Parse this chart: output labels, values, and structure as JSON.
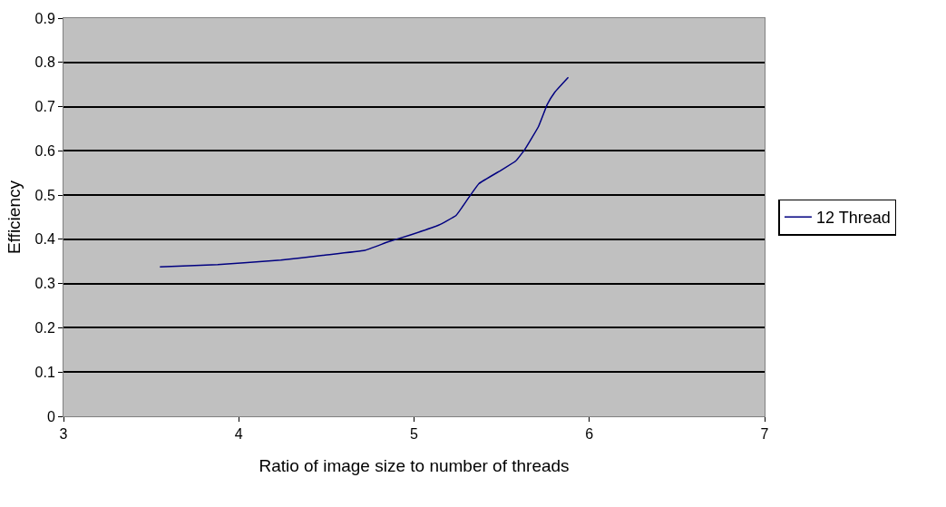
{
  "chart_data": {
    "type": "line",
    "xlabel": "Ratio of image size to number of threads",
    "ylabel": "Efficiency",
    "xlim": [
      3,
      7
    ],
    "xticks": [
      3,
      4,
      5,
      6,
      7
    ],
    "ylim": [
      0,
      0.9
    ],
    "yticks": [
      0,
      0.1,
      0.2,
      0.3,
      0.4,
      0.5,
      0.6,
      0.7,
      0.8,
      0.9
    ],
    "grid": "y",
    "legend": "right",
    "marker": "none",
    "line_style": "solid",
    "series": [
      {
        "name": "12 Thread",
        "color": "#000080",
        "x": [
          3.55,
          3.88,
          4.03,
          4.24,
          4.48,
          4.72,
          4.85,
          4.98,
          5.14,
          5.24,
          5.32,
          5.37,
          5.5,
          5.58,
          5.63,
          5.71,
          5.76,
          5.8,
          5.88
        ],
        "values": [
          0.338,
          0.343,
          0.347,
          0.353,
          0.364,
          0.375,
          0.394,
          0.41,
          0.432,
          0.454,
          0.499,
          0.526,
          0.557,
          0.577,
          0.602,
          0.655,
          0.705,
          0.731,
          0.766
        ]
      }
    ]
  }
}
